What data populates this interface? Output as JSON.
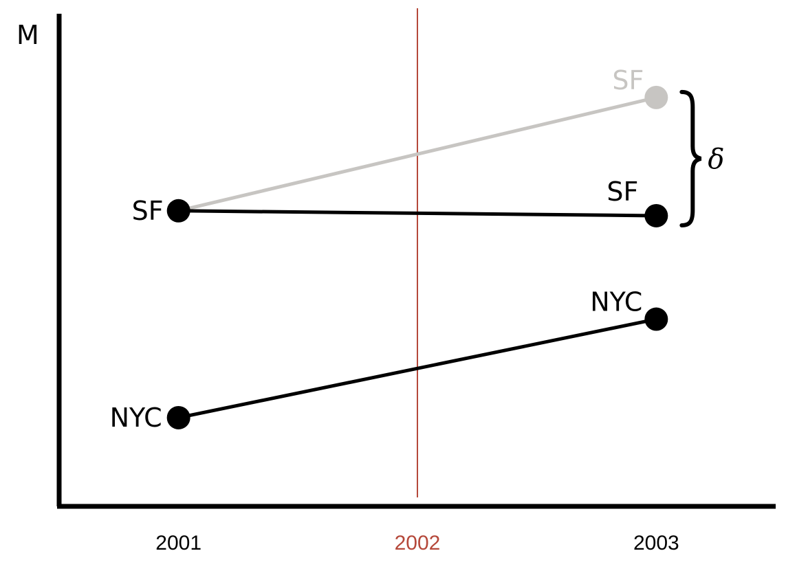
{
  "chart_data": {
    "type": "line",
    "ylabel": "M",
    "x_ticks": [
      "2001",
      "2002",
      "2003"
    ],
    "x": [
      2001,
      2003
    ],
    "series": [
      {
        "name": "SF",
        "values": [
          0.6,
          0.59
        ],
        "color": "#000000"
      },
      {
        "name": "SF",
        "values": [
          0.6,
          0.83
        ],
        "color": "#c7c5c2"
      },
      {
        "name": "NYC",
        "values": [
          0.18,
          0.38
        ],
        "color": "#000000"
      }
    ],
    "point_labels": {
      "sf_2001": "SF",
      "sf_2003_actual": "SF",
      "sf_2003_counterfactual": "SF",
      "nyc_2001": "NYC",
      "nyc_2003": "NYC"
    },
    "vertical_marker": {
      "x": 2002,
      "color": "#b5483a"
    },
    "annotation": {
      "text": "δ",
      "between": [
        "sf_2003_counterfactual",
        "sf_2003_actual"
      ]
    },
    "xlim": [
      2000.5,
      2003.5
    ],
    "ylim": [
      0,
      1
    ],
    "grid": false,
    "legend": "none"
  }
}
